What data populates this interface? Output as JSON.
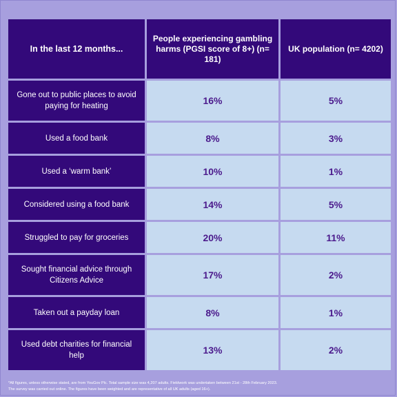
{
  "table": {
    "header": {
      "col1": "In the last 12 months...",
      "col2": "People experiencing gambling harms (PGSI score of 8+) (n= 181)",
      "col3": "UK population (n= 4202)"
    },
    "rows": [
      {
        "label": "Gone out to public places to avoid paying for heating",
        "harms": "16%",
        "uk": "5%"
      },
      {
        "label": "Used a food bank",
        "harms": "8%",
        "uk": "3%"
      },
      {
        "label": "Used a ‘warm bank’",
        "harms": "10%",
        "uk": "1%"
      },
      {
        "label": "Considered using a food bank",
        "harms": "14%",
        "uk": "5%"
      },
      {
        "label": "Struggled to pay for groceries",
        "harms": "20%",
        "uk": "11%"
      },
      {
        "label": "Sought financial advice through Citizens Advice",
        "harms": "17%",
        "uk": "2%"
      },
      {
        "label": "Taken out a payday loan",
        "harms": "8%",
        "uk": "1%"
      },
      {
        "label": "Used debt charities for financial help",
        "harms": "13%",
        "uk": "2%"
      }
    ]
  },
  "footnote": {
    "line1": "*All figures, unless otherwise stated, are from YouGov Plc. Total sample size was 4,207 adults. Fieldwork was undertaken between 21st - 28th February 2023.",
    "line2": "The survey was carried out online. The figures have been weighted and are representative of all UK adults (aged 16+)."
  }
}
